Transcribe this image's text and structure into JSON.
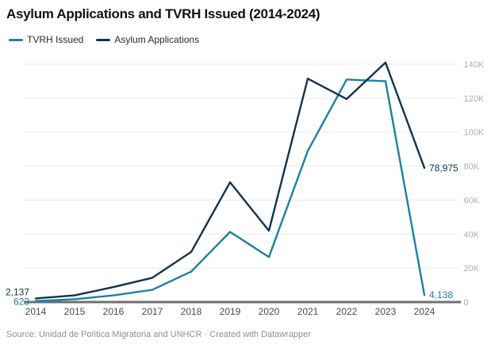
{
  "title": "Asylum Applications and TVRH Issued (2014-2024)",
  "legend": {
    "items": [
      {
        "label": "TVRH Issued",
        "color": "#1a81a6"
      },
      {
        "label": "Asylum Applications",
        "color": "#12334d"
      }
    ]
  },
  "footer": {
    "source": "Source: Unidad de Política Migratoria and UNHCR · Created with Datawrapper"
  },
  "colors": {
    "grid": "#e9e9e9",
    "baseline": "#707070",
    "y_tick_label": "#b0b0b0",
    "x_tick_label": "#4a4a4a"
  },
  "chart_data": {
    "type": "line",
    "title": "Asylum Applications and TVRH Issued (2014-2024)",
    "x": [
      2014,
      2015,
      2016,
      2017,
      2018,
      2019,
      2020,
      2021,
      2022,
      2023,
      2024
    ],
    "series": [
      {
        "name": "TVRH Issued",
        "color": "#1a81a6",
        "values": [
          623,
          1700,
          3900,
          7200,
          17900,
          41300,
          26500,
          89000,
          131000,
          130000,
          4138
        ]
      },
      {
        "name": "Asylum Applications",
        "color": "#12334d",
        "values": [
          2137,
          3900,
          8800,
          14300,
          29500,
          70500,
          42000,
          131500,
          119500,
          141000,
          78975
        ]
      }
    ],
    "ylim": [
      0,
      140000
    ],
    "yticks": [
      {
        "value": 0,
        "label": "0"
      },
      {
        "value": 20000,
        "label": "20K"
      },
      {
        "value": 40000,
        "label": "40K"
      },
      {
        "value": 60000,
        "label": "60K"
      },
      {
        "value": 80000,
        "label": "80K"
      },
      {
        "value": 100000,
        "label": "100K"
      },
      {
        "value": 120000,
        "label": "120K"
      },
      {
        "value": 140000,
        "label": "140K"
      }
    ],
    "grid": true,
    "legend_position": "top",
    "y_axis_side": "right",
    "point_labels": [
      {
        "series": 0,
        "point": 0,
        "text": "623"
      },
      {
        "series": 0,
        "point": 10,
        "text": "4,138"
      },
      {
        "series": 1,
        "point": 0,
        "text": "2,137"
      },
      {
        "series": 1,
        "point": 10,
        "text": "78,975"
      }
    ]
  }
}
